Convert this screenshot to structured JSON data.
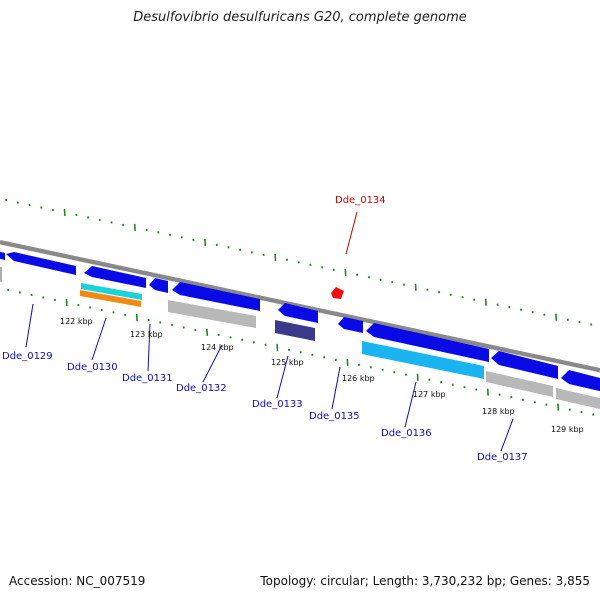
{
  "title": "Desulfovibrio desulfuricans G20, complete genome",
  "footer": {
    "accession": "Accession: NC_007519",
    "summary": "Topology: circular; Length: 3,730,232 bp; Genes: 3,855"
  },
  "ticks": [
    "122 kbp",
    "123 kbp",
    "124 kbp",
    "125 kbp",
    "126 kbp",
    "127 kbp",
    "128 kbp",
    "129 kbp"
  ],
  "genes": [
    {
      "label": "Dde_0129",
      "highlight": false
    },
    {
      "label": "Dde_0130",
      "highlight": false
    },
    {
      "label": "Dde_0131",
      "highlight": false
    },
    {
      "label": "Dde_0132",
      "highlight": false
    },
    {
      "label": "Dde_0133",
      "highlight": false
    },
    {
      "label": "Dde_0134",
      "highlight": true
    },
    {
      "label": "Dde_0135",
      "highlight": false
    },
    {
      "label": "Dde_0136",
      "highlight": false
    },
    {
      "label": "Dde_0137",
      "highlight": false
    }
  ],
  "colors": {
    "gene": "#0a0ae6",
    "highlight": "#ee1111",
    "label": "#1010b0",
    "highlight_label": "#d00000",
    "backbone": "#888888",
    "rna_gray": "#b8b8b8",
    "cyan": "#19d2dc",
    "orange": "#f08a14",
    "navy": "#3a3a8a",
    "light_blue": "#1ab4f0",
    "dots": "#228822"
  }
}
